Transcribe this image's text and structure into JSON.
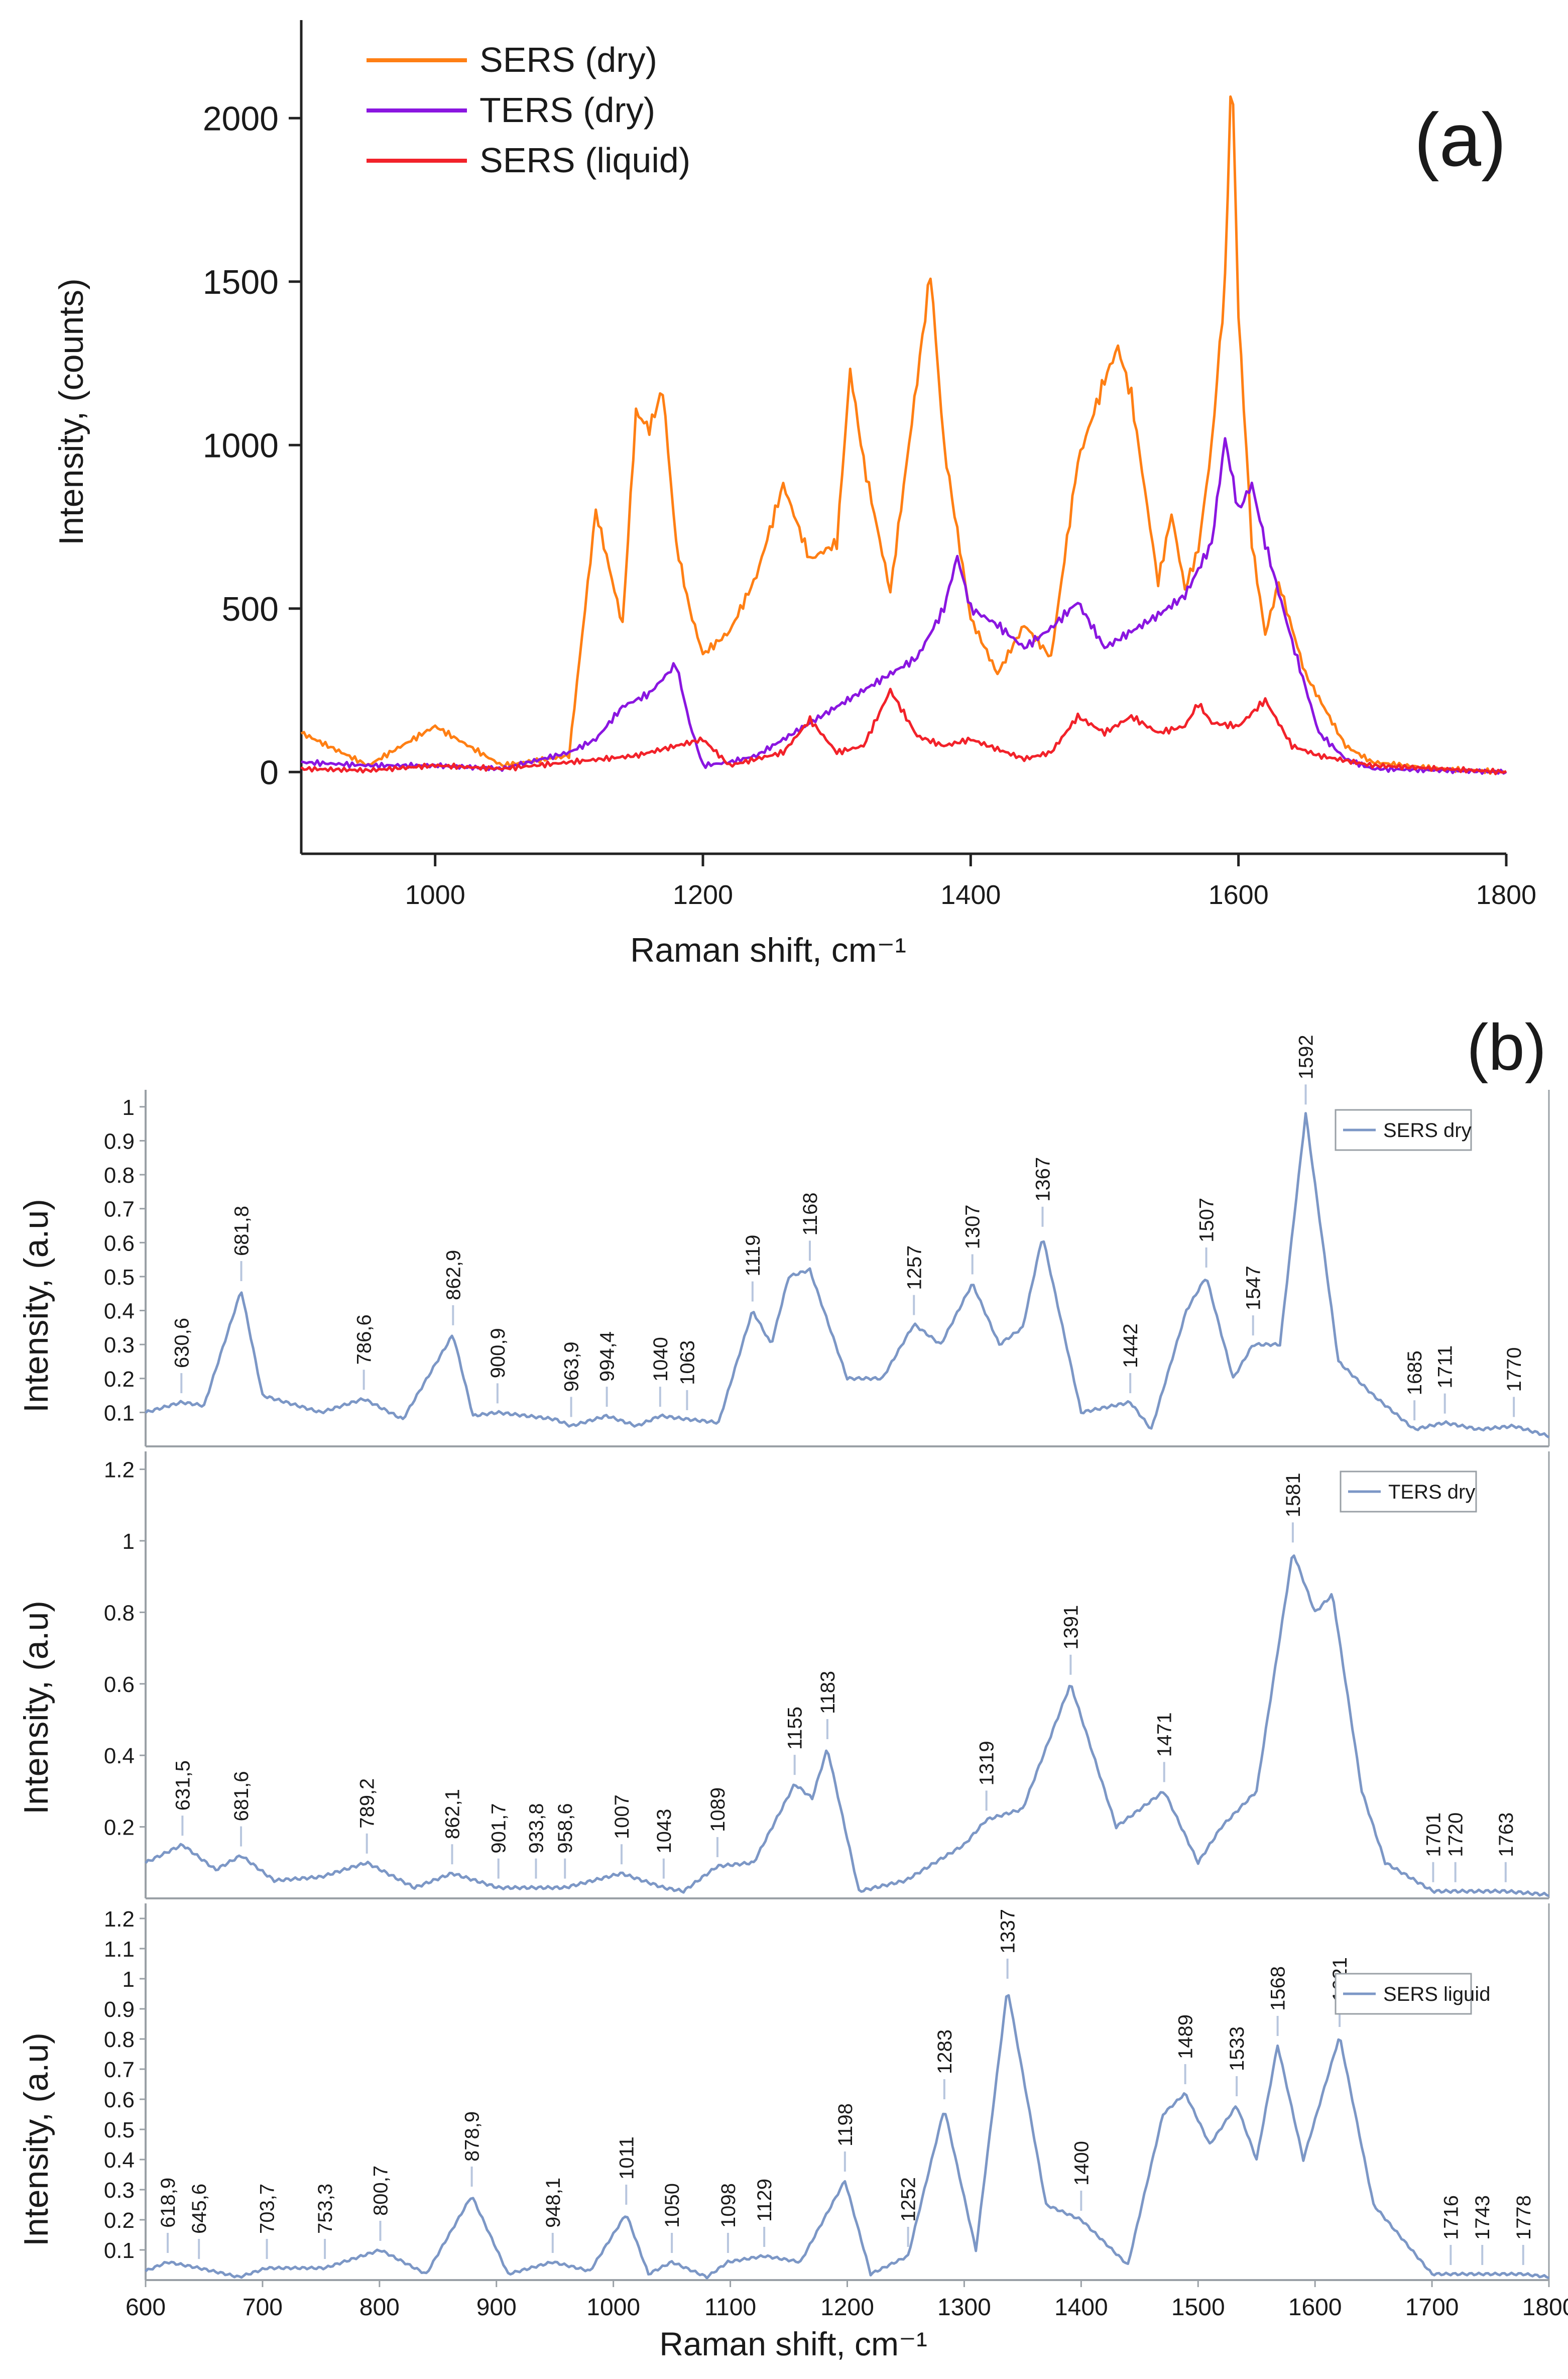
{
  "panel_a": {
    "label": "(a)",
    "legend": [
      "SERS (dry)",
      "TERS (dry)",
      "SERS (liquid)"
    ],
    "colors": {
      "sers_dry": "#ff7f14",
      "ters_dry": "#8a16e0",
      "sers_liquid": "#f2222a"
    }
  },
  "panel_b": {
    "label": "(b)",
    "color": "#7c97c6",
    "sub_labels": [
      "SERS dry",
      "TERS dry",
      "SERS liguid"
    ]
  },
  "chart_data": [
    {
      "type": "line",
      "title": "",
      "xlabel": "Raman shift, cm⁻¹",
      "ylabel": "Intensity, (counts)",
      "xlim": [
        900,
        1800
      ],
      "ylim": [
        -250,
        2300
      ],
      "xticks": [
        1000,
        1200,
        1400,
        1600,
        1800
      ],
      "yticks": [
        0,
        500,
        1000,
        1500,
        2000
      ],
      "grid": false,
      "legend_position": "top-left",
      "series": [
        {
          "name": "SERS (dry)",
          "x": [
            900,
            950,
            1000,
            1050,
            1100,
            1120,
            1140,
            1150,
            1160,
            1170,
            1180,
            1190,
            1200,
            1220,
            1240,
            1260,
            1280,
            1300,
            1310,
            1320,
            1340,
            1360,
            1370,
            1380,
            1400,
            1420,
            1440,
            1460,
            1480,
            1500,
            1510,
            1520,
            1540,
            1550,
            1560,
            1570,
            1580,
            1590,
            1595,
            1600,
            1610,
            1620,
            1630,
            1650,
            1680,
            1700,
            1750,
            1800
          ],
          "y": [
            120,
            20,
            140,
            20,
            50,
            800,
            450,
            1100,
            1050,
            1170,
            700,
            500,
            360,
            430,
            600,
            880,
            650,
            700,
            1230,
            950,
            550,
            1200,
            1530,
            1000,
            470,
            300,
            450,
            350,
            950,
            1200,
            1300,
            1150,
            580,
            790,
            560,
            680,
            1000,
            1500,
            2200,
            1400,
            700,
            420,
            580,
            300,
            80,
            30,
            10,
            0
          ]
        },
        {
          "name": "TERS (dry)",
          "x": [
            900,
            950,
            1000,
            1050,
            1100,
            1120,
            1140,
            1160,
            1180,
            1190,
            1200,
            1220,
            1240,
            1260,
            1280,
            1300,
            1320,
            1340,
            1360,
            1380,
            1390,
            1400,
            1420,
            1440,
            1460,
            1470,
            1480,
            1500,
            1520,
            1540,
            1560,
            1580,
            1590,
            1600,
            1610,
            1620,
            1640,
            1660,
            1680,
            1700,
            1750,
            1800
          ],
          "y": [
            30,
            20,
            20,
            10,
            60,
            100,
            200,
            240,
            330,
            150,
            20,
            30,
            50,
            100,
            150,
            200,
            250,
            300,
            350,
            500,
            660,
            500,
            450,
            380,
            440,
            480,
            520,
            380,
            430,
            480,
            540,
            700,
            1020,
            800,
            880,
            700,
            400,
            120,
            40,
            10,
            5,
            0
          ]
        },
        {
          "name": "SERS (liquid)",
          "x": [
            900,
            950,
            1000,
            1050,
            1100,
            1150,
            1180,
            1200,
            1220,
            1260,
            1280,
            1300,
            1320,
            1340,
            1360,
            1380,
            1400,
            1440,
            1460,
            1480,
            1500,
            1520,
            1540,
            1560,
            1570,
            1580,
            1600,
            1620,
            1640,
            1660,
            1700,
            1750,
            1800
          ],
          "y": [
            10,
            5,
            20,
            10,
            30,
            50,
            80,
            100,
            20,
            60,
            160,
            60,
            80,
            250,
            110,
            80,
            100,
            40,
            60,
            170,
            120,
            170,
            120,
            140,
            210,
            150,
            140,
            220,
            80,
            50,
            20,
            10,
            0
          ]
        }
      ]
    },
    {
      "type": "line",
      "title": "",
      "xlabel": "",
      "ylabel": "Intensity, (a.u)",
      "xlim": [
        600,
        1800
      ],
      "ylim": [
        0,
        1.05
      ],
      "yticks": [
        0.1,
        0.2,
        0.3,
        0.4,
        0.5,
        0.6,
        0.7,
        0.8,
        0.9,
        1
      ],
      "series": [
        {
          "name": "SERS dry",
          "x": [
            600,
            630.6,
            650,
            681.8,
            700,
            750,
            786.6,
            820,
            862.9,
            880,
            900.9,
            950,
            963.9,
            994.4,
            1020,
            1040,
            1063,
            1090,
            1119,
            1135,
            1150,
            1168,
            1200,
            1230,
            1257,
            1280,
            1307,
            1330,
            1350,
            1367,
            1400,
            1442,
            1460,
            1490,
            1507,
            1530,
            1547,
            1570,
            1592,
            1620,
            1650,
            1685,
            1711,
            1740,
            1770,
            1800
          ],
          "y": [
            0.1,
            0.13,
            0.12,
            0.46,
            0.15,
            0.1,
            0.14,
            0.08,
            0.33,
            0.09,
            0.1,
            0.08,
            0.06,
            0.09,
            0.06,
            0.09,
            0.08,
            0.07,
            0.4,
            0.3,
            0.5,
            0.52,
            0.2,
            0.2,
            0.36,
            0.3,
            0.48,
            0.3,
            0.35,
            0.62,
            0.1,
            0.13,
            0.05,
            0.4,
            0.5,
            0.2,
            0.3,
            0.3,
            0.98,
            0.25,
            0.15,
            0.05,
            0.07,
            0.05,
            0.06,
            0.03
          ]
        }
      ],
      "peak_labels": [
        "630,6",
        "681,8",
        "786,6",
        "862,9",
        "900,9",
        "963,9",
        "994,4",
        "1040",
        "1063",
        "1119",
        "1168",
        "1257",
        "1307",
        "1367",
        "1442",
        "1507",
        "1547",
        "1592",
        "1685",
        "1711",
        "1770"
      ]
    },
    {
      "type": "line",
      "title": "",
      "xlabel": "",
      "ylabel": "Intensity, (a.u)",
      "xlim": [
        600,
        1800
      ],
      "ylim": [
        0,
        1.25
      ],
      "yticks": [
        0.2,
        0.4,
        0.6,
        0.8,
        1,
        1.2
      ],
      "series": [
        {
          "name": "TERS dry",
          "x": [
            600,
            631.5,
            660,
            681.6,
            710,
            750,
            789.2,
            830,
            862.1,
            901.7,
            933.8,
            958.6,
            1007,
            1043,
            1060,
            1089,
            1120,
            1155,
            1170,
            1183,
            1210,
            1250,
            1300,
            1319,
            1350,
            1391,
            1430,
            1471,
            1500,
            1520,
            1550,
            1581,
            1600,
            1615,
            1640,
            1660,
            1701,
            1720,
            1763,
            1800
          ],
          "y": [
            0.1,
            0.15,
            0.08,
            0.12,
            0.05,
            0.06,
            0.1,
            0.03,
            0.07,
            0.03,
            0.03,
            0.03,
            0.07,
            0.03,
            0.02,
            0.09,
            0.1,
            0.32,
            0.28,
            0.42,
            0.02,
            0.05,
            0.15,
            0.22,
            0.25,
            0.6,
            0.2,
            0.3,
            0.1,
            0.2,
            0.3,
            0.97,
            0.8,
            0.85,
            0.3,
            0.1,
            0.02,
            0.02,
            0.02,
            0.01
          ]
        }
      ],
      "peak_labels": [
        "631,5",
        "681,6",
        "789,2",
        "862,1",
        "901,7",
        "933,8",
        "958,6",
        "1007",
        "1043",
        "1089",
        "1155",
        "1183",
        "1319",
        "1391",
        "1471",
        "1581",
        "1701",
        "1720",
        "1763"
      ]
    },
    {
      "type": "line",
      "title": "",
      "xlabel": "Raman shift, cm⁻¹",
      "ylabel": "Intensity, (a.u)",
      "xlim": [
        600,
        1800
      ],
      "ylim": [
        0,
        1.25
      ],
      "xticks": [
        600,
        700,
        800,
        900,
        1000,
        1100,
        1200,
        1300,
        1400,
        1500,
        1600,
        1700,
        1800
      ],
      "yticks": [
        0.1,
        0.2,
        0.3,
        0.4,
        0.5,
        0.6,
        0.7,
        0.8,
        0.9,
        1,
        1.1,
        1.2
      ],
      "series": [
        {
          "name": "SERS liguid",
          "x": [
            600,
            618.9,
            645.6,
            680,
            703.7,
            753.3,
            800.7,
            840,
            878.9,
            910,
            948.1,
            980,
            1011,
            1030,
            1050,
            1080,
            1098,
            1129,
            1160,
            1198,
            1220,
            1252,
            1283,
            1310,
            1337,
            1370,
            1400,
            1440,
            1470,
            1489,
            1510,
            1533,
            1550,
            1568,
            1590,
            1621,
            1650,
            1700,
            1716,
            1743,
            1778,
            1800
          ],
          "y": [
            0.03,
            0.06,
            0.04,
            0.01,
            0.04,
            0.04,
            0.1,
            0.02,
            0.28,
            0.02,
            0.06,
            0.03,
            0.22,
            0.02,
            0.06,
            0.01,
            0.06,
            0.08,
            0.06,
            0.33,
            0.02,
            0.08,
            0.57,
            0.1,
            0.97,
            0.25,
            0.2,
            0.05,
            0.55,
            0.62,
            0.45,
            0.58,
            0.4,
            0.78,
            0.4,
            0.81,
            0.25,
            0.02,
            0.02,
            0.02,
            0.02,
            0.01
          ]
        }
      ],
      "peak_labels": [
        "618,9",
        "645,6",
        "703,7",
        "753,3",
        "800,7",
        "878,9",
        "948,1",
        "1011",
        "1050",
        "1098",
        "1129",
        "1198",
        "1252",
        "1283",
        "1337",
        "1400",
        "1489",
        "1533",
        "1568",
        "1621",
        "1716",
        "1743",
        "1778"
      ]
    }
  ]
}
